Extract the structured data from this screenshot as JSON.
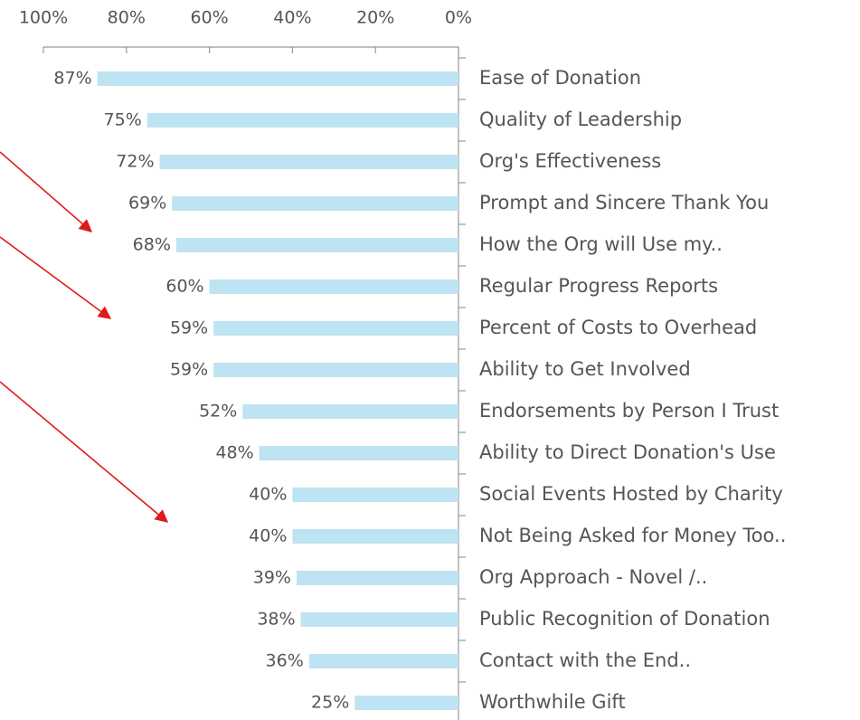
{
  "chart_data": {
    "type": "bar",
    "orientation": "horizontal",
    "categories": [
      "Ease of Donation",
      "Quality of Leadership",
      "Org's Effectiveness",
      "Prompt and Sincere Thank You",
      "How the Org will Use my..",
      "Regular Progress Reports",
      "Percent of Costs to Overhead",
      "Ability to Get Involved",
      "Endorsements by Person I Trust",
      "Ability to Direct Donation's Use",
      "Social Events Hosted by Charity",
      "Not Being Asked for Money Too..",
      "Org Approach - Novel /..",
      "Public Recognition of Donation",
      "Contact with the End..",
      "Worthwhile Gift"
    ],
    "values": [
      87,
      75,
      72,
      69,
      68,
      60,
      59,
      59,
      52,
      48,
      40,
      40,
      39,
      38,
      36,
      25
    ],
    "value_labels": [
      "87%",
      "75%",
      "72%",
      "69%",
      "68%",
      "60%",
      "59%",
      "59%",
      "52%",
      "48%",
      "40%",
      "40%",
      "39%",
      "38%",
      "36%",
      "25%"
    ],
    "color": "#bee3f2",
    "xlim": [
      100,
      0
    ],
    "xticks": [
      {
        "value": 100,
        "label": "100%"
      },
      {
        "value": 80,
        "label": "80%"
      },
      {
        "value": 60,
        "label": "60%"
      },
      {
        "value": 40,
        "label": "40%"
      },
      {
        "value": 20,
        "label": "20%"
      },
      {
        "value": 0,
        "label": "0%"
      }
    ],
    "grid": false
  }
}
